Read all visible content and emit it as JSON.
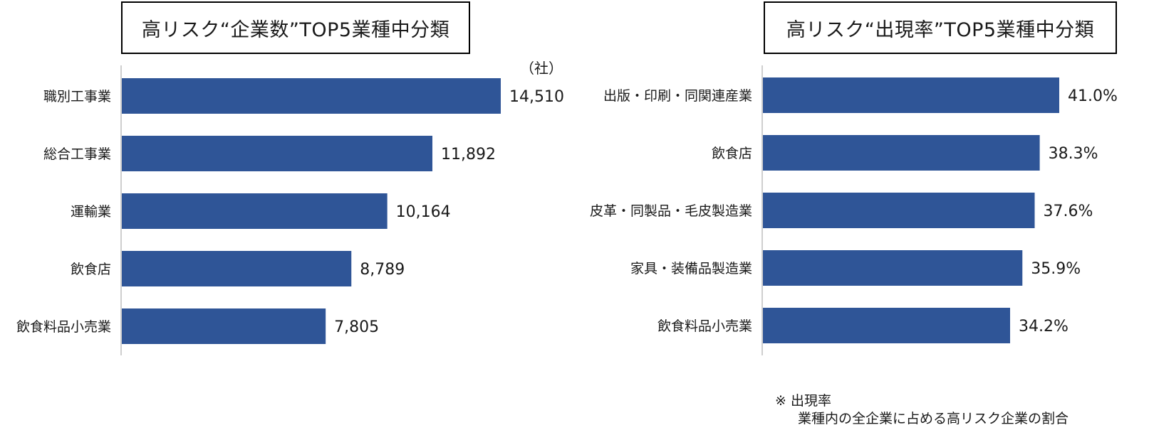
{
  "colors": {
    "bar": "#2f5597",
    "axis": "#cfcfcf"
  },
  "charts": {
    "left": {
      "title": "高リスク“企業数”TOP5業種中分類",
      "unit": "（社）"
    },
    "right": {
      "title": "高リスク“出現率”TOP5業種中分類"
    }
  },
  "footnote": {
    "line1": "※ 出現率",
    "line2": "業種内の全企業に占める高リスク企業の割合"
  },
  "chart_data": [
    {
      "type": "bar",
      "orientation": "horizontal",
      "title": "高リスク“企業数”TOP5業種中分類",
      "unit": "社",
      "categories": [
        "職別工事業",
        "総合工事業",
        "運輸業",
        "飲食店",
        "飲食料品小売業"
      ],
      "values": [
        14510,
        11892,
        10164,
        8789,
        7805
      ],
      "value_labels": [
        "14,510",
        "11,892",
        "10,164",
        "8,789",
        "7,805"
      ],
      "xlim": [
        0,
        14510
      ],
      "grid": false,
      "legend": "none"
    },
    {
      "type": "bar",
      "orientation": "horizontal",
      "title": "高リスク“出現率”TOP5業種中分類",
      "unit": "%",
      "categories": [
        "出版・印刷・同関連産業",
        "飲食店",
        "皮革・同製品・毛皮製造業",
        "家具・装備品製造業",
        "飲食料品小売業"
      ],
      "values": [
        41.0,
        38.3,
        37.6,
        35.9,
        34.2
      ],
      "value_labels": [
        "41.0%",
        "38.3%",
        "37.6%",
        "35.9%",
        "34.2%"
      ],
      "xlim": [
        0,
        41.0
      ],
      "grid": false,
      "legend": "none"
    }
  ]
}
